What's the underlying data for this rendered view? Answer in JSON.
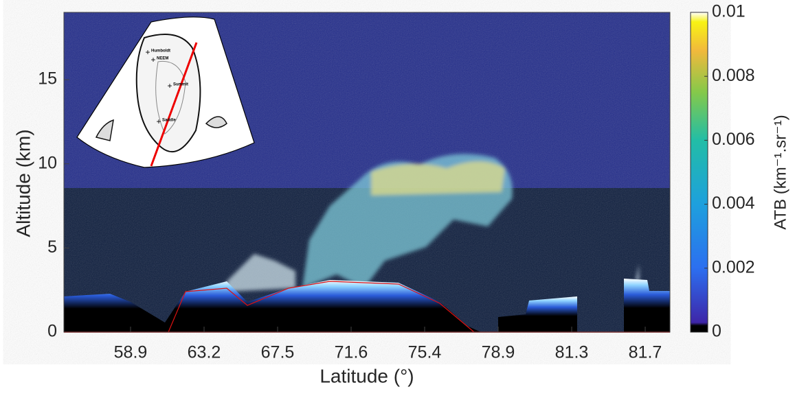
{
  "chart_data": {
    "type": "heatmap",
    "xlabel": "Latitude (°)",
    "ylabel": "Altitude (km)",
    "xticks": [
      "58.9",
      "63.2",
      "67.5",
      "71.6",
      "75.4",
      "78.9",
      "81.3",
      "81.7"
    ],
    "ylim": [
      0,
      19
    ],
    "yticks": [
      0,
      5,
      10,
      15
    ],
    "colorbar": {
      "label": "ATB (km⁻¹.sr⁻¹)",
      "clim": [
        0,
        0.01
      ],
      "ticks": [
        0,
        0.002,
        0.004,
        0.006,
        0.008,
        0.01
      ]
    },
    "inset": {
      "labels": [
        "Humboldt",
        "NEEM",
        "Summit",
        "Saddle"
      ]
    }
  }
}
